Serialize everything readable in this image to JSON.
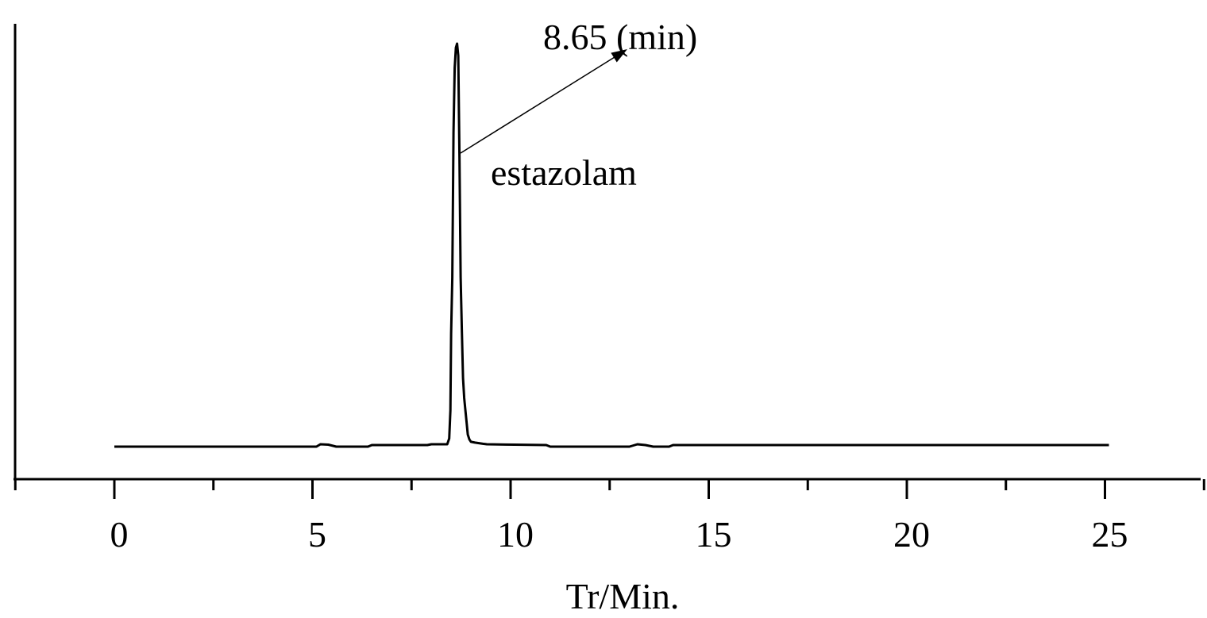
{
  "chart_data": {
    "type": "line",
    "xlabel": "Tr/Min.",
    "ylabel": "",
    "xlim": [
      -2.5,
      27.5
    ],
    "x_ticks": [
      0,
      5,
      10,
      15,
      20,
      25
    ],
    "x_tick_labels": [
      "0",
      "5",
      "10",
      "15",
      "20",
      "25"
    ],
    "grid": false,
    "y_ticks": false,
    "annotations": {
      "peak_time_label": "8.65 (min)",
      "peak_name_label": "estazolam",
      "peak_time": 8.65
    },
    "series": [
      {
        "x": [
          0,
          5.1,
          5.2,
          5.4,
          5.6,
          6.4,
          6.5,
          7.9,
          8.0,
          8.4,
          8.45,
          8.48,
          8.5,
          8.53,
          8.56,
          8.59,
          8.62,
          8.65,
          8.68,
          8.71,
          8.74,
          8.77,
          8.8,
          8.83,
          8.86,
          8.89,
          8.92,
          8.96,
          9.0,
          9.1,
          9.3,
          9.4,
          10.1,
          10.9,
          11.0,
          13.0,
          13.2,
          13.4,
          13.6,
          14.0,
          14.1,
          25.1
        ],
        "y": [
          0.0,
          0.0,
          0.006,
          0.005,
          0.0,
          0.0,
          0.004,
          0.004,
          0.006,
          0.006,
          0.02,
          0.09,
          0.28,
          0.42,
          0.78,
          0.94,
          0.99,
          1.0,
          0.97,
          0.72,
          0.42,
          0.29,
          0.17,
          0.12,
          0.09,
          0.06,
          0.03,
          0.018,
          0.012,
          0.01,
          0.007,
          0.006,
          0.005,
          0.004,
          0.0,
          0.0,
          0.006,
          0.004,
          0.0,
          0.0,
          0.004,
          0.004
        ]
      }
    ]
  }
}
